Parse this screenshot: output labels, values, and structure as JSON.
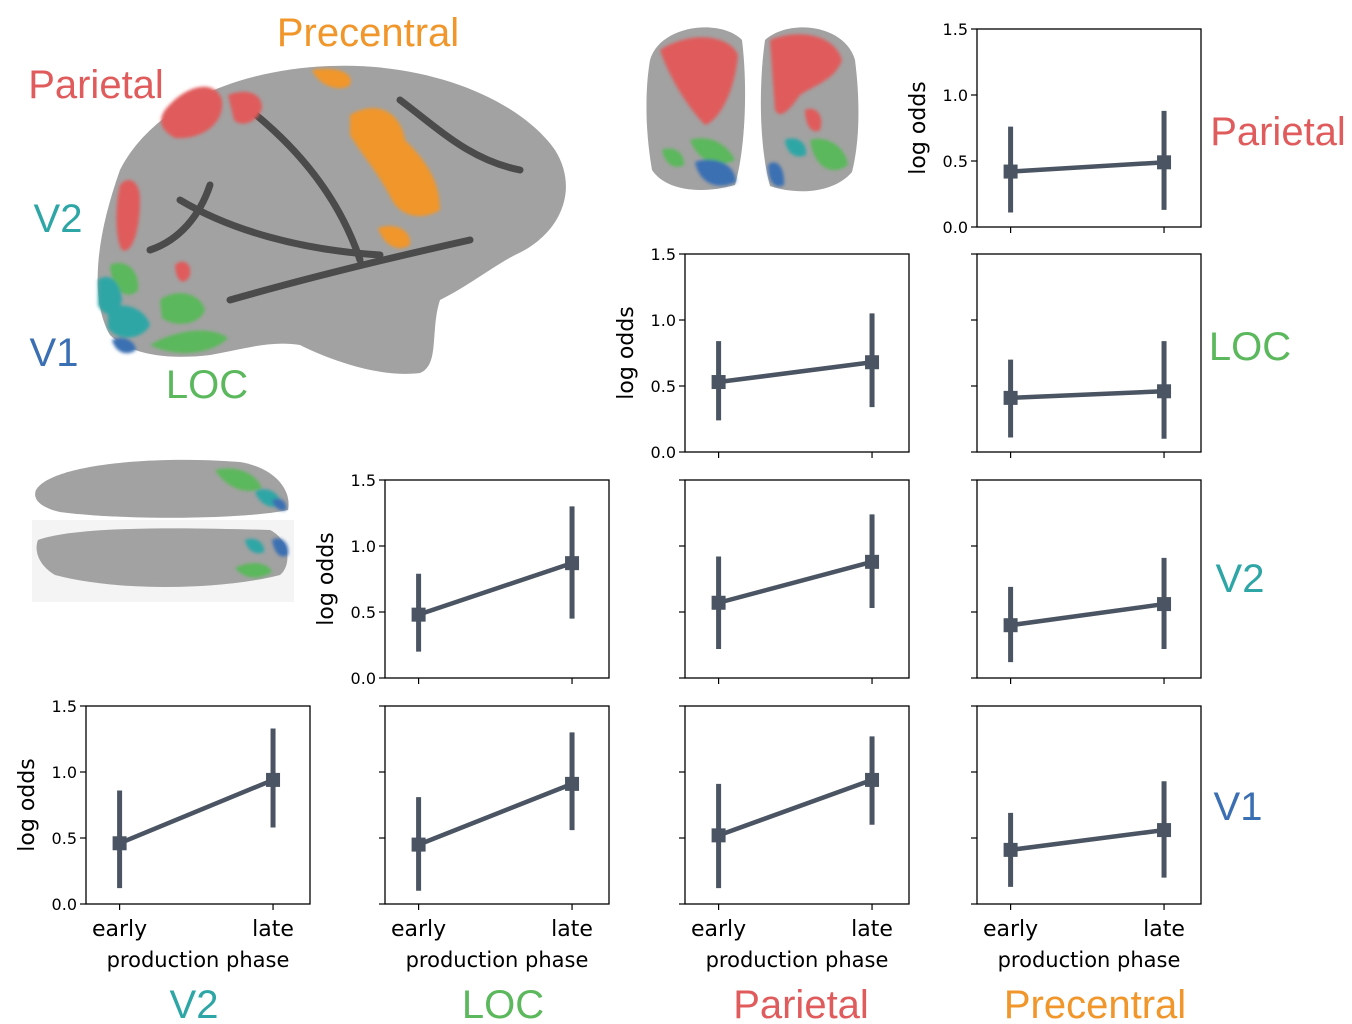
{
  "colors": {
    "Parietal": "#e05c5c",
    "Precentral": "#f0962a",
    "V2": "#2ea6a6",
    "V1": "#3b6fb3",
    "LOC": "#5cb85c",
    "line": "#4a5462",
    "brain_base": "#9c9c9c",
    "brain_dark": "#3a3a3a"
  },
  "brain_labels": {
    "precentral": "Precentral",
    "parietal": "Parietal",
    "v2": "V2",
    "v1": "V1",
    "loc": "LOC"
  },
  "row_labels": [
    "Parietal",
    "LOC",
    "V2",
    "V1"
  ],
  "col_labels": [
    "V2",
    "LOC",
    "Parietal",
    "Precentral"
  ],
  "ytick_labels": [
    "0.0",
    "0.5",
    "1.0",
    "1.5"
  ],
  "xtick_labels": [
    "early",
    "late"
  ],
  "xlabel": "production phase",
  "ylabel": "log odds",
  "chart_data": [
    {
      "type": "line",
      "row": "Parietal",
      "col": "Precentral",
      "x": [
        "early",
        "late"
      ],
      "y": [
        0.42,
        0.49
      ],
      "ci_low": [
        0.11,
        0.13
      ],
      "ci_high": [
        0.76,
        0.88
      ],
      "ylim": [
        0,
        1.5
      ]
    },
    {
      "type": "line",
      "row": "LOC",
      "col": "Parietal",
      "x": [
        "early",
        "late"
      ],
      "y": [
        0.53,
        0.68
      ],
      "ci_low": [
        0.24,
        0.34
      ],
      "ci_high": [
        0.84,
        1.05
      ],
      "ylim": [
        0,
        1.5
      ]
    },
    {
      "type": "line",
      "row": "LOC",
      "col": "Precentral",
      "x": [
        "early",
        "late"
      ],
      "y": [
        0.41,
        0.46
      ],
      "ci_low": [
        0.11,
        0.1
      ],
      "ci_high": [
        0.7,
        0.84
      ],
      "ylim": [
        0,
        1.5
      ]
    },
    {
      "type": "line",
      "row": "V2",
      "col": "LOC",
      "x": [
        "early",
        "late"
      ],
      "y": [
        0.48,
        0.87
      ],
      "ci_low": [
        0.2,
        0.45
      ],
      "ci_high": [
        0.79,
        1.3
      ],
      "ylim": [
        0,
        1.5
      ]
    },
    {
      "type": "line",
      "row": "V2",
      "col": "Parietal",
      "x": [
        "early",
        "late"
      ],
      "y": [
        0.57,
        0.88
      ],
      "ci_low": [
        0.22,
        0.53
      ],
      "ci_high": [
        0.92,
        1.24
      ],
      "ylim": [
        0,
        1.5
      ]
    },
    {
      "type": "line",
      "row": "V2",
      "col": "Precentral",
      "x": [
        "early",
        "late"
      ],
      "y": [
        0.4,
        0.56
      ],
      "ci_low": [
        0.12,
        0.22
      ],
      "ci_high": [
        0.69,
        0.91
      ],
      "ylim": [
        0,
        1.5
      ]
    },
    {
      "type": "line",
      "row": "V1",
      "col": "V2",
      "x": [
        "early",
        "late"
      ],
      "y": [
        0.46,
        0.94
      ],
      "ci_low": [
        0.12,
        0.58
      ],
      "ci_high": [
        0.86,
        1.33
      ],
      "ylim": [
        0,
        1.5
      ]
    },
    {
      "type": "line",
      "row": "V1",
      "col": "LOC",
      "x": [
        "early",
        "late"
      ],
      "y": [
        0.45,
        0.91
      ],
      "ci_low": [
        0.1,
        0.56
      ],
      "ci_high": [
        0.81,
        1.3
      ],
      "ylim": [
        0,
        1.5
      ]
    },
    {
      "type": "line",
      "row": "V1",
      "col": "Parietal",
      "x": [
        "early",
        "late"
      ],
      "y": [
        0.52,
        0.94
      ],
      "ci_low": [
        0.12,
        0.6
      ],
      "ci_high": [
        0.91,
        1.27
      ],
      "ylim": [
        0,
        1.5
      ]
    },
    {
      "type": "line",
      "row": "V1",
      "col": "Precentral",
      "x": [
        "early",
        "late"
      ],
      "y": [
        0.41,
        0.56
      ],
      "ci_low": [
        0.13,
        0.2
      ],
      "ci_high": [
        0.69,
        0.93
      ],
      "ylim": [
        0,
        1.5
      ]
    }
  ]
}
